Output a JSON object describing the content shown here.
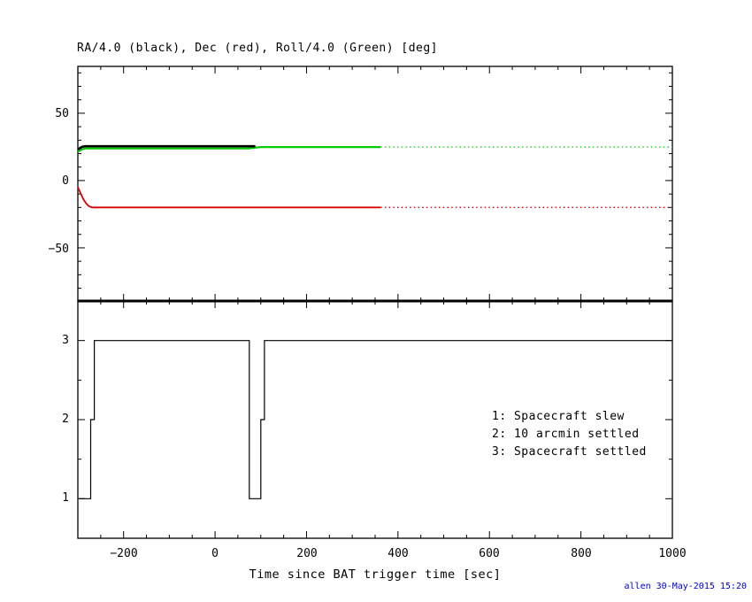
{
  "plot": {
    "title": "RA/4.0 (black), Dec (red), Roll/4.0 (Green) [deg]",
    "xlabel": "Time since BAT trigger time [sec]",
    "credit": "allen 30-May-2015 15:20"
  },
  "axes": {
    "top_y": [
      "50",
      "0",
      "−50"
    ],
    "bottom_y": [
      "3",
      "2",
      "1"
    ],
    "x": [
      "−200",
      "0",
      "200",
      "400",
      "600",
      "800",
      "1000"
    ]
  },
  "legend": {
    "items": [
      "1: Spacecraft slew",
      "2: 10 arcmin settled",
      "3: Spacecraft settled"
    ]
  },
  "colors": {
    "ra": "#000000",
    "dec": "#dd0000",
    "roll": "#00cc00",
    "frame": "#000000",
    "credit": "#0000cc"
  },
  "chart_data": [
    {
      "type": "line",
      "panel": "attitude",
      "title": "RA/4.0 (black), Dec (red), Roll/4.0 (Green) [deg]",
      "xlim": [
        -300,
        1000
      ],
      "ylim": [
        -89.5,
        84.8
      ],
      "xticks": [
        -200,
        0,
        200,
        400,
        600,
        800,
        1000
      ],
      "yticks": [
        -50,
        0,
        50
      ],
      "xmajor": 200,
      "xminor": 50,
      "ymajor": 50,
      "yminor": 10,
      "series": [
        {
          "name": "roll-line",
          "label": "Roll/4.0",
          "color": "#00cc00",
          "style": "solid",
          "width": 2.2,
          "points": [
            [
              -300,
              21.4
            ],
            [
              -291,
              23.2
            ],
            [
              -284,
              23.8
            ],
            [
              75,
              23.8
            ],
            [
              83,
              24.3
            ],
            [
              100,
              24.9
            ],
            [
              362,
              24.9
            ]
          ]
        },
        {
          "name": "ra-line",
          "label": "RA/4.0",
          "color": "#000000",
          "style": "solid",
          "width": 2.6,
          "points": [
            [
              -300,
              23.2
            ],
            [
              -291,
              25.0
            ],
            [
              -284,
              25.5
            ],
            [
              88,
              25.5
            ]
          ]
        },
        {
          "name": "dec-line",
          "label": "Dec",
          "color": "#dd0000",
          "style": "solid",
          "width": 1.8,
          "points": [
            [
              -300,
              -5
            ],
            [
              -294,
              -9.5
            ],
            [
              -288,
              -13.8
            ],
            [
              -282,
              -17
            ],
            [
              -276,
              -19
            ],
            [
              -269,
              -20
            ],
            [
              362,
              -20
            ]
          ]
        },
        {
          "name": "roll-line-predicted",
          "label": "Roll/4.0 predicted",
          "color": "#00cc00",
          "style": "dotted",
          "width": 1.3,
          "points": [
            [
              362,
              24.9
            ],
            [
              1000,
              24.9
            ]
          ]
        },
        {
          "name": "dec-line-predicted",
          "label": "Dec predicted",
          "color": "#dd0000",
          "style": "dotted",
          "width": 1.3,
          "points": [
            [
              362,
              -20
            ],
            [
              1000,
              -20
            ]
          ]
        }
      ]
    },
    {
      "type": "step",
      "panel": "settled-flag",
      "xlim": [
        -300,
        1000
      ],
      "ylim": [
        0.5,
        3.5
      ],
      "xticks": [
        -200,
        0,
        200,
        400,
        600,
        800,
        1000
      ],
      "yticks": [
        1,
        2,
        3
      ],
      "xmajor": 200,
      "xminor": 50,
      "ymajor": 1,
      "yminor": 0.5,
      "legend": [
        "1: Spacecraft slew",
        "2: 10 arcmin settled",
        "3: Spacecraft settled"
      ],
      "series": [
        {
          "name": "settled-state-line",
          "label": "Settled state",
          "color": "#000000",
          "style": "solid",
          "width": 1.2,
          "points": [
            [
              -300,
              1
            ],
            [
              -272,
              1
            ],
            [
              -272,
              2
            ],
            [
              -264,
              2
            ],
            [
              -264,
              3
            ],
            [
              75,
              3
            ],
            [
              75,
              1
            ],
            [
              100,
              1
            ],
            [
              100,
              2
            ],
            [
              108,
              2
            ],
            [
              108,
              3
            ],
            [
              1000,
              3
            ]
          ]
        }
      ]
    }
  ]
}
